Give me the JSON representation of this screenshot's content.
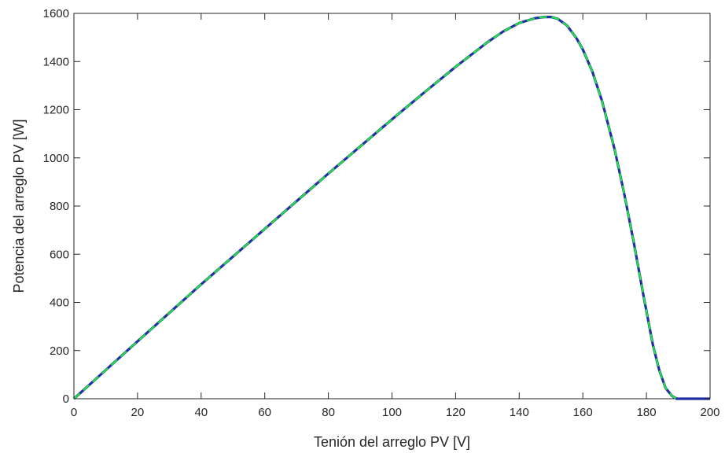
{
  "chart_data": {
    "type": "line",
    "title": "",
    "xlabel": "Tenión del arreglo PV [V]",
    "ylabel": "Potencia del arreglo PV [W]",
    "xlim": [
      0,
      200
    ],
    "ylim": [
      0,
      1600
    ],
    "xticks": [
      0,
      20,
      40,
      60,
      80,
      100,
      120,
      140,
      160,
      180,
      200
    ],
    "yticks": [
      0,
      200,
      400,
      600,
      800,
      1000,
      1200,
      1400,
      1600
    ],
    "grid": false,
    "legend": "none",
    "series": [
      {
        "style": "solid",
        "color": "#1f2fa8",
        "x": [
          0,
          20,
          40,
          60,
          80,
          100,
          110,
          120,
          130,
          135,
          140,
          145,
          148,
          150,
          152,
          155,
          158,
          160,
          163,
          166,
          170,
          173,
          176,
          179,
          182,
          184,
          186,
          188,
          189.5,
          190,
          195,
          200
        ],
        "y": [
          0,
          238,
          475,
          705,
          935,
          1160,
          1270,
          1378,
          1480,
          1525,
          1560,
          1580,
          1585,
          1585,
          1578,
          1550,
          1497,
          1450,
          1358,
          1238,
          1035,
          852,
          650,
          433,
          225,
          120,
          45,
          12,
          0,
          0,
          0,
          0
        ]
      },
      {
        "style": "dashed",
        "color": "#22e83a",
        "x": [
          0,
          20,
          40,
          60,
          80,
          100,
          110,
          120,
          130,
          135,
          140,
          145,
          148,
          150,
          152,
          155,
          158,
          160,
          163,
          166,
          170,
          173,
          176,
          179,
          182,
          184,
          186,
          188,
          189.5,
          190
        ],
        "y": [
          0,
          238,
          475,
          705,
          935,
          1160,
          1270,
          1378,
          1480,
          1525,
          1560,
          1580,
          1585,
          1585,
          1578,
          1550,
          1497,
          1450,
          1358,
          1238,
          1035,
          852,
          650,
          433,
          225,
          120,
          45,
          12,
          0,
          0
        ]
      }
    ]
  }
}
